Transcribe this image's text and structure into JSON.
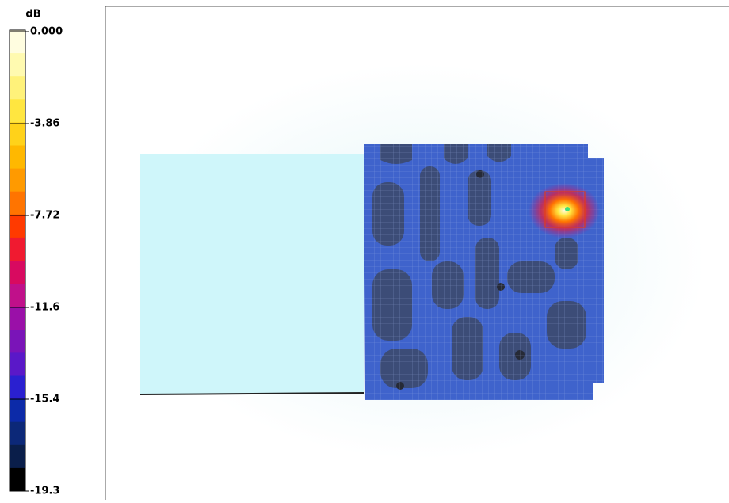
{
  "colorbar": {
    "unit": "dB",
    "ticks": [
      "0.000",
      "-3.86",
      "-7.72",
      "-11.6",
      "-15.4",
      "-19.3"
    ],
    "colors": [
      "#fffde0",
      "#fffab0",
      "#fff27a",
      "#ffe640",
      "#ffd21a",
      "#ffb800",
      "#ff9a00",
      "#ff7400",
      "#ff3a00",
      "#f01a30",
      "#d80a60",
      "#c0108a",
      "#9a10a8",
      "#7a14b8",
      "#5a18c8",
      "#2a20d0",
      "#0c2aa8",
      "#0c2878",
      "#0a1e4a",
      "#000000"
    ]
  }
}
